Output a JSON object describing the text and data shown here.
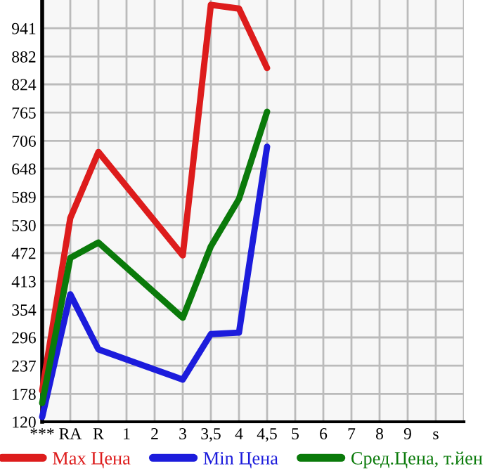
{
  "chart_data": {
    "type": "line",
    "categories": [
      "***",
      "RA",
      "R",
      "1",
      "2",
      "3",
      "3,5",
      "4",
      "4,5",
      "5",
      "6",
      "7",
      "8",
      "9",
      "s"
    ],
    "series": [
      {
        "name": "Max Цена",
        "color": "#dd1c1c",
        "values": [
          185,
          545,
          683,
          null,
          null,
          467,
          990,
          982,
          858,
          null,
          null,
          null,
          null,
          null,
          null
        ]
      },
      {
        "name": "Min Цена",
        "color": "#1c1cdc",
        "values": [
          130,
          386,
          271,
          null,
          null,
          208,
          303,
          306,
          694,
          null,
          null,
          null,
          null,
          null,
          null
        ]
      },
      {
        "name": "Сред.Цена, т.йен",
        "color": "#0a7a0a",
        "values": [
          159,
          462,
          494,
          null,
          null,
          337,
          486,
          585,
          767,
          null,
          null,
          null,
          null,
          null,
          null
        ]
      }
    ],
    "ylim": [
      120,
      1000
    ],
    "yticks": [
      120,
      178,
      237,
      296,
      354,
      413,
      472,
      530,
      589,
      648,
      706,
      765,
      824,
      882,
      941
    ],
    "grid": true,
    "legend": "bottom",
    "marker": "none",
    "line_style": "solid"
  }
}
